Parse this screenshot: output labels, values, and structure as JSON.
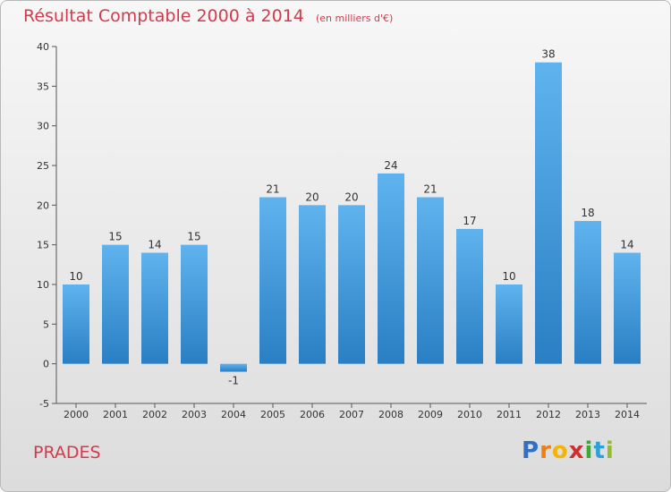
{
  "chart_data": {
    "type": "bar",
    "title": "Résultat Comptable 2000 à 2014",
    "subtitle": "(en milliers d'€)",
    "categories": [
      "2000",
      "2001",
      "2002",
      "2003",
      "2004",
      "2005",
      "2006",
      "2007",
      "2008",
      "2009",
      "2010",
      "2011",
      "2012",
      "2013",
      "2014"
    ],
    "values": [
      10,
      15,
      14,
      15,
      -1,
      21,
      20,
      20,
      24,
      21,
      17,
      10,
      38,
      18,
      14
    ],
    "data_labels": [
      "10",
      "15",
      "14",
      "15",
      "-1",
      "21",
      "20",
      "20",
      "24",
      "21",
      "17",
      "10",
      "38",
      "18",
      "14"
    ],
    "ylim": [
      -5,
      40
    ],
    "yticks": [
      -5,
      0,
      5,
      10,
      15,
      20,
      25,
      30,
      35,
      40
    ],
    "grid": false,
    "bar_color": "#3d94d6"
  },
  "footer": {
    "place": "PRADES",
    "brand_letters": [
      "P",
      "r",
      "o",
      "x",
      "i",
      "t",
      "i"
    ],
    "brand_colors": [
      "#2f6fc4",
      "#f07d14",
      "#f4b400",
      "#d12f2f",
      "#3aa935",
      "#2f9fd8",
      "#8fbf2f"
    ]
  }
}
